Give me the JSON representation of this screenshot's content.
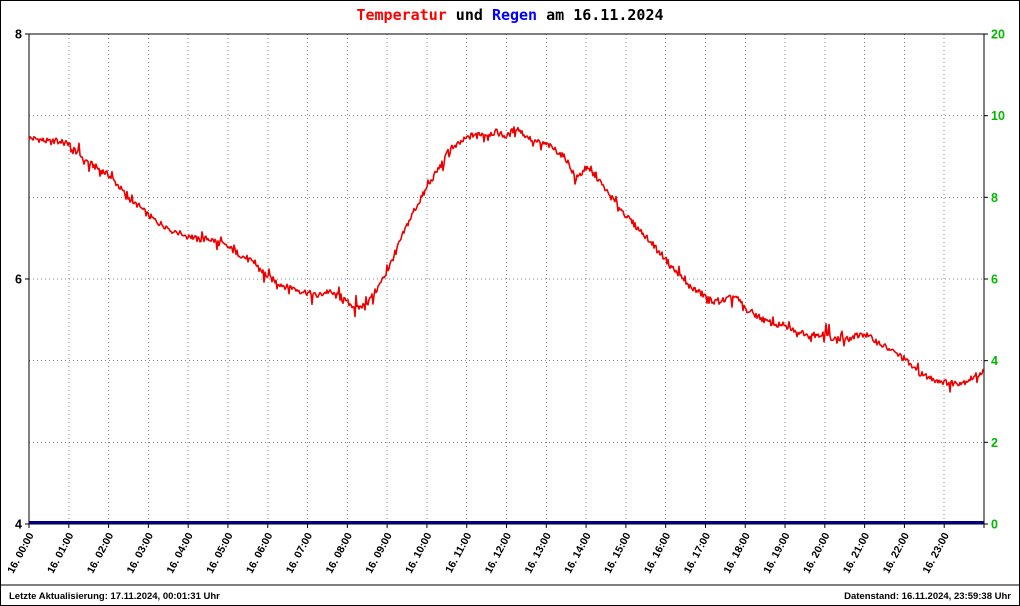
{
  "title": {
    "part1": "Temperatur",
    "part2": " und ",
    "part3": "Regen",
    "part4": " am 16.11.2024"
  },
  "footer": {
    "left": "Letzte Aktualisierung: 17.11.2024, 00:01:31 Uhr",
    "right": "Datenstand: 16.11.2024, 23:59:38 Uhr"
  },
  "colors": {
    "temperature_line": "#ee0000",
    "rain_line": "#000080",
    "title_temperature": "#ff0000",
    "title_rain": "#0000ff",
    "right_axis_labels": "#00b800",
    "gridlines": "#808080",
    "axis": "#000000"
  },
  "chart_data": {
    "type": "line",
    "title": "Temperatur und Regen am 16.11.2024",
    "grid": "dotted horizontal and vertical (hourly)",
    "x_axis": {
      "hours": 24,
      "labels": [
        "16. 00:00",
        "16. 01:00",
        "16. 02:00",
        "16. 03:00",
        "16. 04:00",
        "16. 05:00",
        "16. 06:00",
        "16. 07:00",
        "16. 08:00",
        "16. 09:00",
        "16. 10:00",
        "16. 11:00",
        "16. 12:00",
        "16. 13:00",
        "16. 14:00",
        "16. 15:00",
        "16. 16:00",
        "16. 17:00",
        "16. 18:00",
        "16. 19:00",
        "16. 20:00",
        "16. 21:00",
        "16. 22:00",
        "16. 23:00"
      ]
    },
    "left_axis": {
      "min": 4,
      "max": 8,
      "ticks": [
        {
          "grid": 0,
          "label": "8"
        },
        {
          "grid": 3,
          "label": "6"
        },
        {
          "grid": 6,
          "label": "4"
        }
      ]
    },
    "right_axis": {
      "labels": [
        "20",
        "10",
        "8",
        "6",
        "4",
        "2",
        "0"
      ],
      "color": "#00b800",
      "scale_note": "nonlinear rain scale, equal spacing between printed labels"
    },
    "series": [
      {
        "name": "Temperatur",
        "color": "#ee0000",
        "axis": "left",
        "x_step_minutes": 15,
        "values": [
          7.15,
          7.14,
          7.12,
          7.12,
          7.1,
          7.02,
          6.95,
          6.9,
          6.85,
          6.76,
          6.66,
          6.6,
          6.52,
          6.46,
          6.42,
          6.38,
          6.36,
          6.32,
          6.33,
          6.3,
          6.26,
          6.21,
          6.16,
          6.1,
          6.02,
          5.97,
          5.93,
          5.91,
          5.89,
          5.86,
          5.9,
          5.86,
          5.81,
          5.76,
          5.8,
          5.92,
          6.06,
          6.25,
          6.44,
          6.6,
          6.74,
          6.88,
          7.0,
          7.09,
          7.15,
          7.19,
          7.18,
          7.2,
          7.16,
          7.24,
          7.16,
          7.12,
          7.1,
          7.05,
          6.98,
          6.82,
          6.9,
          6.84,
          6.72,
          6.62,
          6.52,
          6.43,
          6.35,
          6.26,
          6.16,
          6.06,
          5.96,
          5.91,
          5.86,
          5.81,
          5.83,
          5.86,
          5.76,
          5.71,
          5.66,
          5.63,
          5.61,
          5.58,
          5.56,
          5.55,
          5.55,
          5.51,
          5.5,
          5.53,
          5.55,
          5.5,
          5.45,
          5.4,
          5.35,
          5.26,
          5.21,
          5.18,
          5.16,
          5.15,
          5.16,
          5.2,
          5.25
        ]
      },
      {
        "name": "Regen",
        "color": "#000080",
        "axis": "right",
        "x_step_minutes": 60,
        "values": [
          0,
          0,
          0,
          0,
          0,
          0,
          0,
          0,
          0,
          0,
          0,
          0,
          0,
          0,
          0,
          0,
          0,
          0,
          0,
          0,
          0,
          0,
          0,
          0,
          0
        ]
      }
    ]
  }
}
